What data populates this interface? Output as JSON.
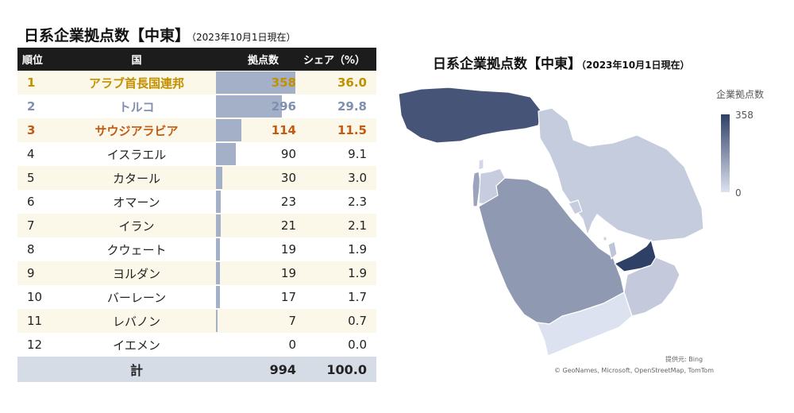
{
  "left_title": "日系企業拠点数【中東】",
  "left_subtitle": "（2023年10月1日現在）",
  "table": {
    "headers": {
      "rank": "順位",
      "country": "国",
      "count": "拠点数",
      "share": "シェア（%）"
    },
    "total": {
      "label": "計",
      "count": "994",
      "share": "100.0"
    }
  },
  "chart_data": [
    {
      "type": "bar",
      "title": "日系企業拠点数【中東】",
      "subtitle": "（2023年10月1日現在）",
      "categories": [
        "アラブ首長国連邦",
        "トルコ",
        "サウジアラビア",
        "イスラエル",
        "カタール",
        "オマーン",
        "イラン",
        "クウェート",
        "ヨルダン",
        "バーレーン",
        "レバノン",
        "イエメン"
      ],
      "ranks": [
        "1",
        "2",
        "3",
        "4",
        "5",
        "6",
        "7",
        "8",
        "9",
        "10",
        "11",
        "12"
      ],
      "values": [
        358,
        296,
        114,
        90,
        30,
        23,
        21,
        19,
        19,
        17,
        7,
        0
      ],
      "shares": [
        "36.0",
        "29.8",
        "11.5",
        "9.1",
        "3.0",
        "2.3",
        "2.1",
        "1.9",
        "1.9",
        "1.7",
        "0.7",
        "0.0"
      ],
      "ylim": [
        0,
        358
      ]
    },
    {
      "type": "heatmap",
      "title": "日系企業拠点数【中東】",
      "subtitle": "（2023年10月1日現在）",
      "legend_title": "企業拠点数",
      "legend_min": "0",
      "legend_max": "358",
      "legend_placement": "right",
      "color_min": "#dde2f0",
      "color_max": "#2f4066",
      "regions": [
        {
          "name": "トルコ",
          "value": 296
        },
        {
          "name": "イラン",
          "value": 21
        },
        {
          "name": "サウジアラビア",
          "value": 114
        },
        {
          "name": "アラブ首長国連邦",
          "value": 358
        },
        {
          "name": "オマーン",
          "value": 23
        },
        {
          "name": "イエメン",
          "value": 0
        },
        {
          "name": "イスラエル",
          "value": 90
        },
        {
          "name": "ヨルダン",
          "value": 19
        },
        {
          "name": "レバノン",
          "value": 7
        },
        {
          "name": "クウェート",
          "value": 19
        },
        {
          "name": "カタール",
          "value": 30
        },
        {
          "name": "バーレーン",
          "value": 17
        }
      ],
      "credits": [
        "提供元: Bing",
        "© GeoNames, Microsoft, OpenStreetMap, TomTom"
      ]
    }
  ]
}
